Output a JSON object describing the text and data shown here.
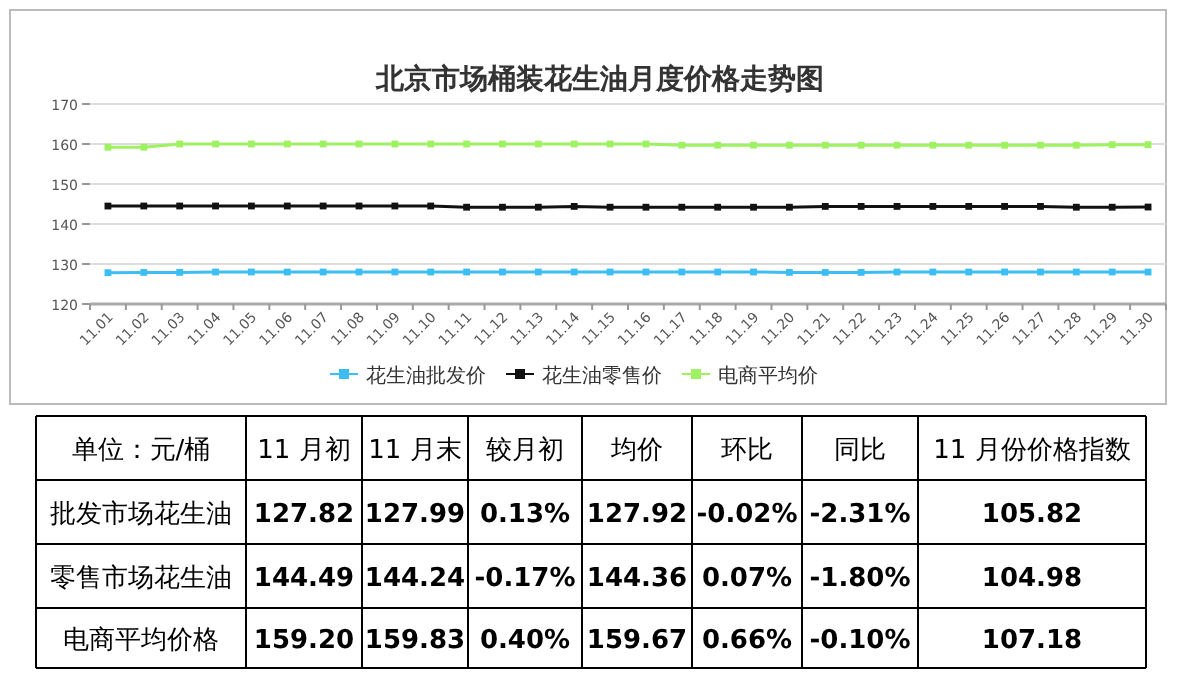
{
  "chart_data": [
    {
      "type": "line",
      "title": "北京市场桶装花生油月度价格走势图",
      "categories": [
        "11.01",
        "11.02",
        "11.03",
        "11.04",
        "11.05",
        "11.06",
        "11.07",
        "11.08",
        "11.09",
        "11.10",
        "11.11",
        "11.12",
        "11.13",
        "11.14",
        "11.15",
        "11.16",
        "11.17",
        "11.18",
        "11.19",
        "11.20",
        "11.21",
        "11.22",
        "11.23",
        "11.24",
        "11.25",
        "11.26",
        "11.27",
        "11.28",
        "11.29",
        "11.30"
      ],
      "series": [
        {
          "name": "花生油批发价",
          "color": "#3cbef4",
          "values": [
            127.82,
            127.9,
            127.9,
            128,
            128,
            128,
            128,
            128,
            128,
            128,
            128,
            128,
            128,
            128,
            128,
            128,
            128,
            128,
            128,
            127.9,
            127.9,
            127.9,
            128,
            128,
            128,
            128,
            128,
            128,
            128,
            127.99
          ]
        },
        {
          "name": "花生油零售价",
          "color": "#111111",
          "values": [
            144.49,
            144.5,
            144.5,
            144.5,
            144.5,
            144.5,
            144.5,
            144.5,
            144.5,
            144.5,
            144.2,
            144.2,
            144.2,
            144.4,
            144.2,
            144.2,
            144.2,
            144.2,
            144.2,
            144.2,
            144.4,
            144.4,
            144.4,
            144.4,
            144.4,
            144.4,
            144.4,
            144.2,
            144.2,
            144.24
          ]
        },
        {
          "name": "电商平均价",
          "color": "#9ef262",
          "values": [
            159.2,
            159.2,
            160,
            160,
            160,
            160,
            160,
            160,
            160,
            160,
            160,
            160,
            160,
            160,
            160,
            160,
            159.7,
            159.7,
            159.7,
            159.7,
            159.7,
            159.7,
            159.7,
            159.7,
            159.7,
            159.7,
            159.7,
            159.7,
            159.83,
            159.83
          ]
        }
      ],
      "ylim": [
        120,
        170
      ],
      "yticks": [
        120,
        130,
        140,
        150,
        160,
        170
      ],
      "grid": "y",
      "legend": "bottom",
      "marker": "square",
      "line_style": "solid"
    },
    {
      "type": "other",
      "annotations": [
        "单位：元/桶",
        "11 月初",
        "11 月末",
        "较月初",
        "均价",
        "环比",
        "同比",
        "11 月份价格指数",
        "批发市场花生油",
        "127.82",
        "127.99",
        "0.13%",
        "127.92",
        "-0.02%",
        "-2.31%",
        "105.82",
        "零售市场花生油",
        "144.49",
        "144.24",
        "-0.17%",
        "144.36",
        "0.07%",
        "-1.80%",
        "104.98",
        "电商平均价格",
        "159.20",
        "159.83",
        "0.40%",
        "159.67",
        "0.66%",
        "-0.10%",
        "107.18"
      ]
    }
  ]
}
